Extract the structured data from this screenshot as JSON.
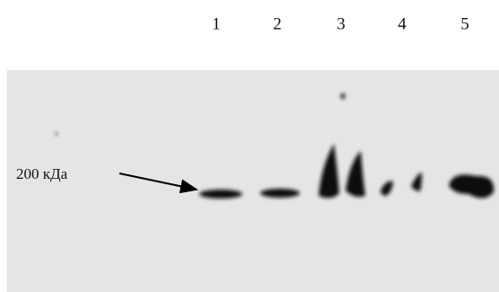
{
  "lanes": {
    "labels": [
      "1",
      "2",
      "3",
      "4",
      "5"
    ]
  },
  "marker": {
    "label": "200 кДа"
  }
}
